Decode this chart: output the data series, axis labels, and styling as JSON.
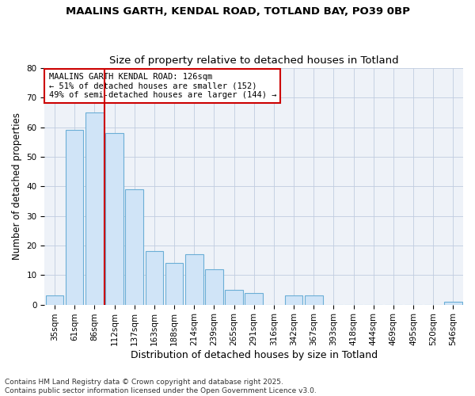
{
  "title1": "MAALINS GARTH, KENDAL ROAD, TOTLAND BAY, PO39 0BP",
  "title2": "Size of property relative to detached houses in Totland",
  "xlabel": "Distribution of detached houses by size in Totland",
  "ylabel": "Number of detached properties",
  "categories": [
    "35sqm",
    "61sqm",
    "86sqm",
    "112sqm",
    "137sqm",
    "163sqm",
    "188sqm",
    "214sqm",
    "239sqm",
    "265sqm",
    "291sqm",
    "316sqm",
    "342sqm",
    "367sqm",
    "393sqm",
    "418sqm",
    "444sqm",
    "469sqm",
    "495sqm",
    "520sqm",
    "546sqm"
  ],
  "values": [
    3,
    59,
    65,
    58,
    39,
    18,
    14,
    17,
    12,
    5,
    4,
    0,
    3,
    3,
    0,
    0,
    0,
    0,
    0,
    0,
    1
  ],
  "bar_color": "#d0e4f7",
  "bar_edge_color": "#6baed6",
  "vline_x": 2.5,
  "vline_color": "#cc0000",
  "annotation_text": "MAALINS GARTH KENDAL ROAD: 126sqm\n← 51% of detached houses are smaller (152)\n49% of semi-detached houses are larger (144) →",
  "annotation_box_color": "#ffffff",
  "annotation_box_edge_color": "#cc0000",
  "ylim": [
    0,
    80
  ],
  "yticks": [
    0,
    10,
    20,
    30,
    40,
    50,
    60,
    70,
    80
  ],
  "background_color": "#ffffff",
  "plot_bg_color": "#eef2f8",
  "grid_color": "#c0cce0",
  "footer": "Contains HM Land Registry data © Crown copyright and database right 2025.\nContains public sector information licensed under the Open Government Licence v3.0.",
  "title1_fontsize": 9.5,
  "title2_fontsize": 9.5,
  "annotation_fontsize": 7.5,
  "tick_fontsize": 7.5,
  "label_fontsize": 9,
  "footer_fontsize": 6.5,
  "ylabel_fontsize": 8.5
}
